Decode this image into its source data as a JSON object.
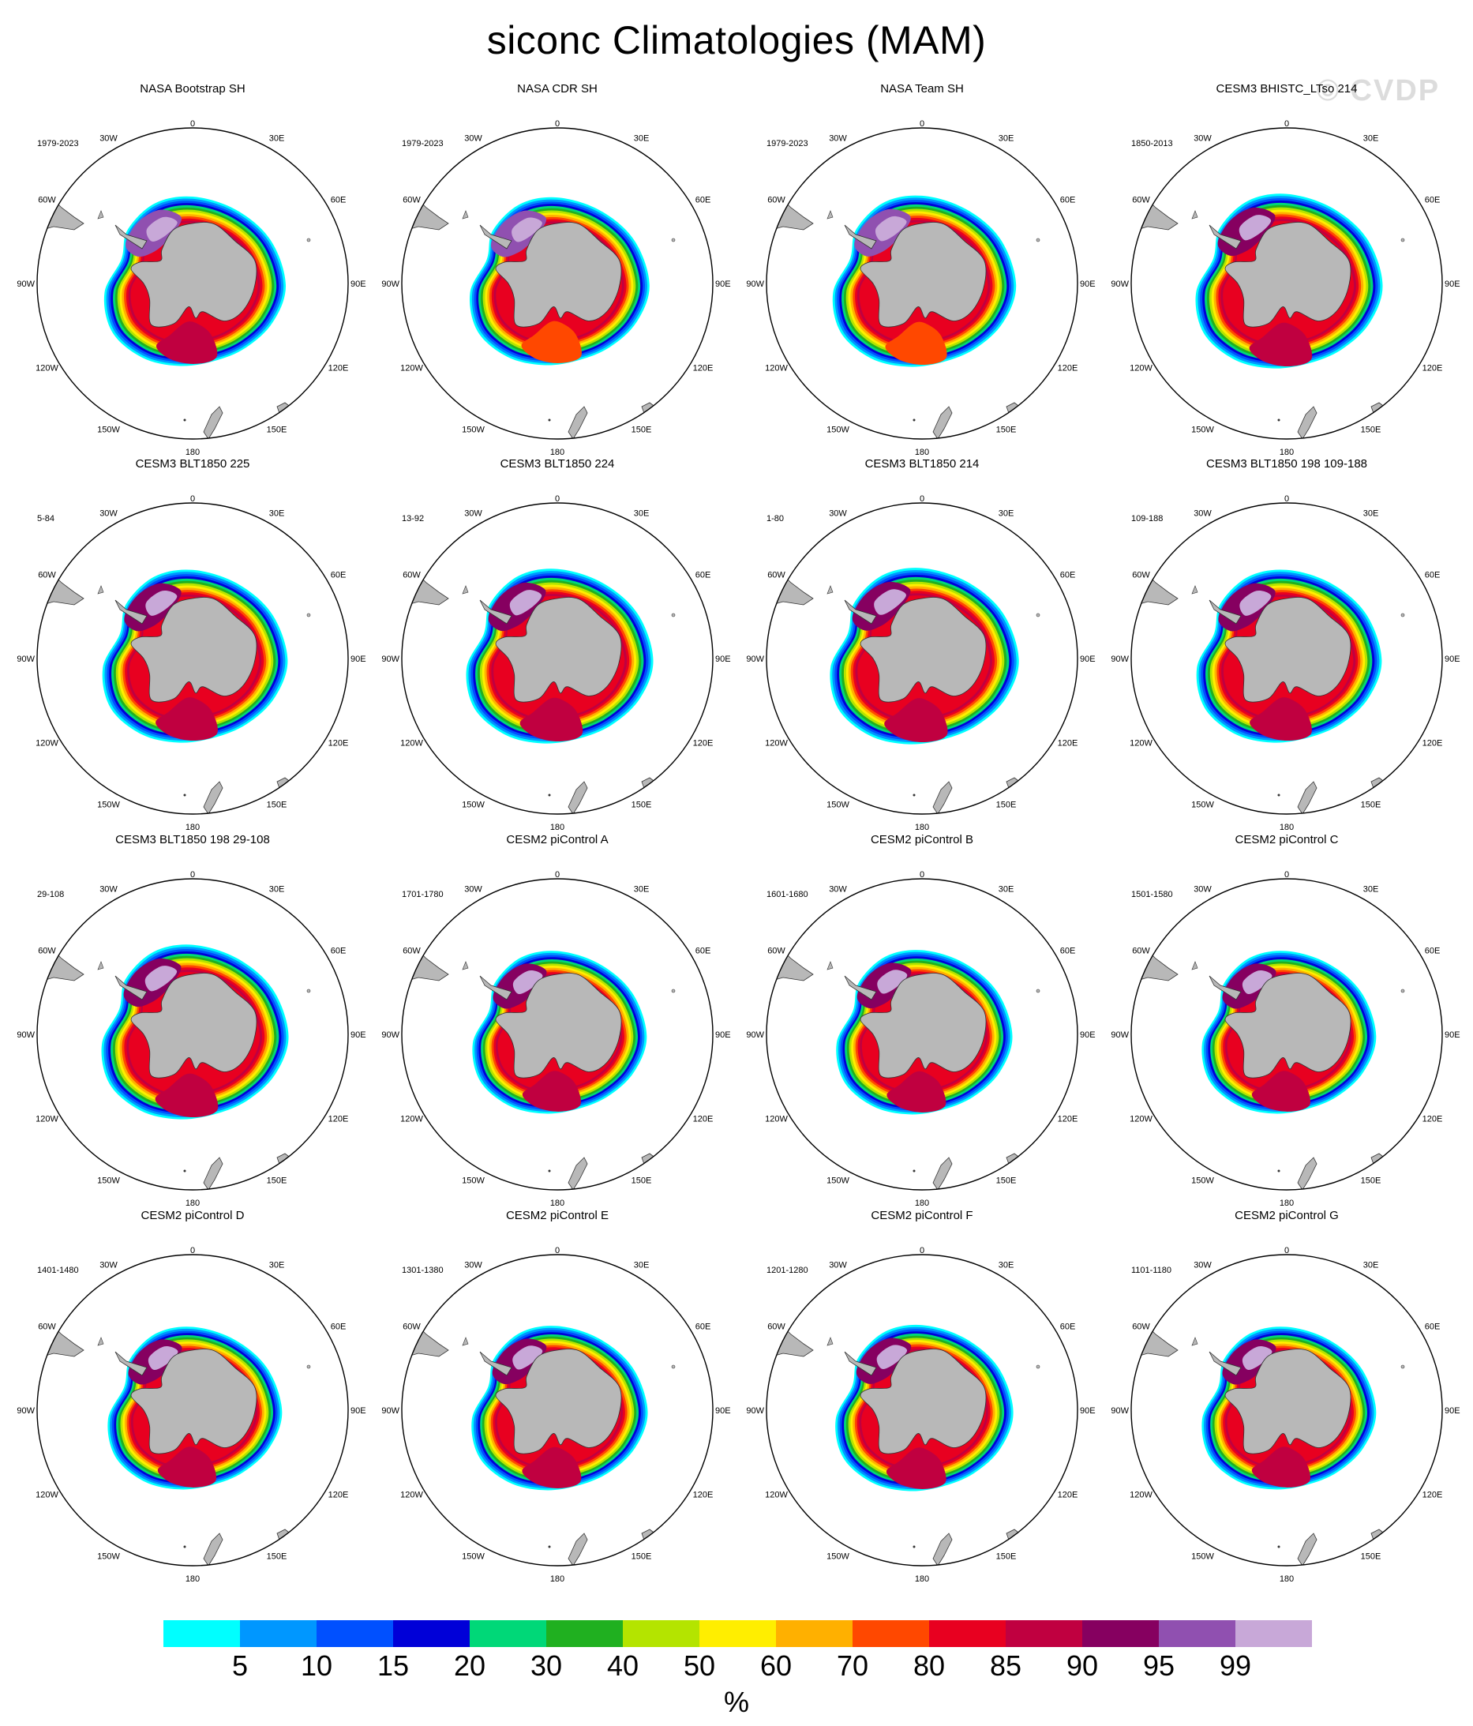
{
  "title": "siconc Climatologies (MAM)",
  "watermark": "© CVDP",
  "colors": {
    "land": "#b8b8b8",
    "coast": "#333333",
    "circle": "#000000",
    "levels": [
      "#00ffff",
      "#0097ff",
      "#0050ff",
      "#0000d8",
      "#00d878",
      "#20b020",
      "#b4e400",
      "#ffee00",
      "#ffb000",
      "#ff4800",
      "#e80020",
      "#c00040",
      "#860060",
      "#9050b0",
      "#c8a8d8"
    ]
  },
  "map_labels": {
    "lon": [
      "0",
      "30E",
      "60E",
      "90E",
      "120E",
      "150E",
      "180",
      "150W",
      "120W",
      "90W",
      "60W",
      "30W"
    ]
  },
  "panels": [
    {
      "title": "NASA Bootstrap SH",
      "period": "1979-2023"
    },
    {
      "title": "NASA CDR SH",
      "period": "1979-2023"
    },
    {
      "title": "NASA Team SH",
      "period": "1979-2023"
    },
    {
      "title": "CESM3 BHISTC_LTso 214",
      "period": "1850-2013"
    },
    {
      "title": "CESM3 BLT1850 225",
      "period": "5-84"
    },
    {
      "title": "CESM3 BLT1850 224",
      "period": "13-92"
    },
    {
      "title": "CESM3 BLT1850 214",
      "period": "1-80"
    },
    {
      "title": "CESM3 BLT1850 198 109-188",
      "period": "109-188"
    },
    {
      "title": "CESM3 BLT1850 198 29-108",
      "period": "29-108"
    },
    {
      "title": "CESM2 piControl A",
      "period": "1701-1780"
    },
    {
      "title": "CESM2 piControl B",
      "period": "1601-1680"
    },
    {
      "title": "CESM2 piControl C",
      "period": "1501-1580"
    },
    {
      "title": "CESM2 piControl D",
      "period": "1401-1480"
    },
    {
      "title": "CESM2 piControl E",
      "period": "1301-1380"
    },
    {
      "title": "CESM2 piControl F",
      "period": "1201-1280"
    },
    {
      "title": "CESM2 piControl G",
      "period": "1101-1180"
    }
  ],
  "colorbar": {
    "labels": [
      "5",
      "10",
      "15",
      "20",
      "30",
      "40",
      "50",
      "60",
      "70",
      "80",
      "85",
      "90",
      "95",
      "99"
    ],
    "units": "%"
  }
}
